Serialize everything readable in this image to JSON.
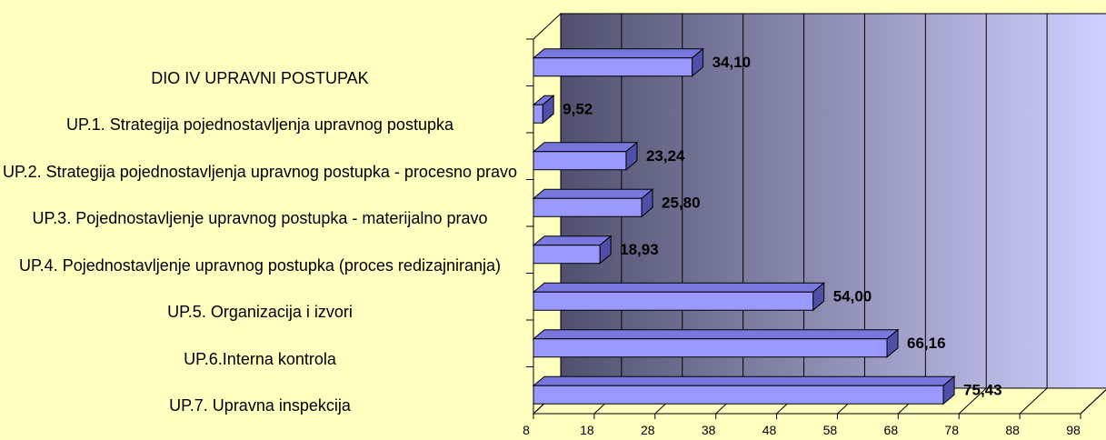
{
  "chart_data": {
    "type": "bar",
    "orientation": "horizontal",
    "categories": [
      "DIO IV UPRAVNI POSTUPAK",
      "UP.1. Strategija pojednostavljenja upravnog postupka",
      "UP.2. Strategija pojednostavljenja upravnog postupka - procesno pravo",
      "UP.3. Pojednostavljenje upravnog postupka - materijalno pravo",
      "UP.4. Pojednostavljenje upravnog postupka (proces redizajniranja)",
      "UP.5. Organizacija i izvori",
      "UP.6.Interna kontrola",
      "UP.7. Upravna inspekcija"
    ],
    "values": [
      34.1,
      9.52,
      23.24,
      25.8,
      18.93,
      54.0,
      66.16,
      75.43
    ],
    "value_labels": [
      "34,10",
      "9,52",
      "23,24",
      "25,80",
      "18,93",
      "54,00",
      "66,16",
      "75,43"
    ],
    "color": "#9999ff",
    "xlim": [
      8,
      98
    ],
    "xticks": [
      8,
      18,
      28,
      38,
      48,
      58,
      68,
      78,
      88,
      98
    ],
    "grid": true
  }
}
